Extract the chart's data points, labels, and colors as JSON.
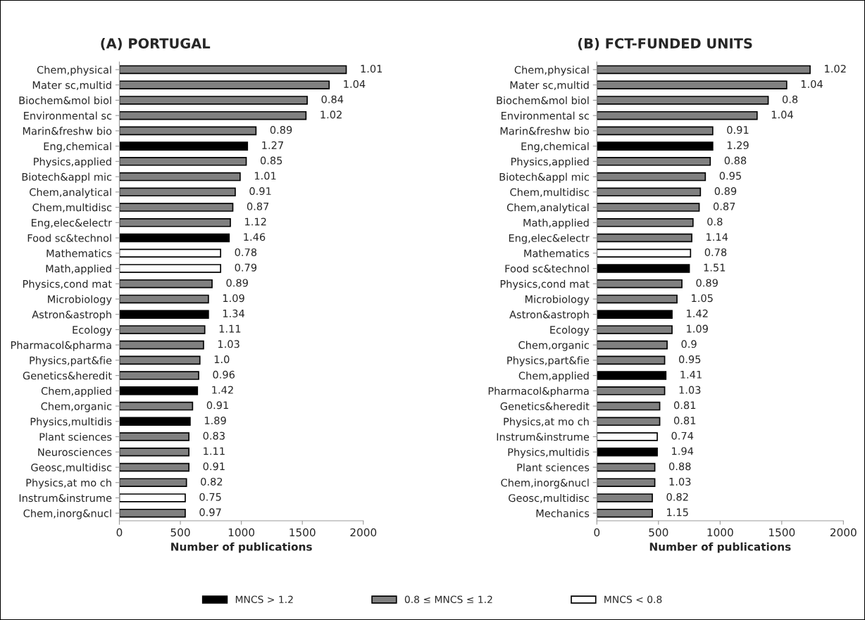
{
  "chart_data": [
    {
      "type": "bar",
      "orientation": "horizontal",
      "title": "(A) PORTUGAL",
      "xlabel": "Number of publications",
      "legend": "bottom",
      "grid": false,
      "categories": [
        "Chem,physical",
        "Mater sc,multid",
        "Biochem&mol biol",
        "Environmental sc",
        "Marin&freshw bio",
        "Eng,chemical",
        "Physics,applied",
        "Biotech&appl mic",
        "Chem,analytical",
        "Chem,multidisc",
        "Eng,elec&electr",
        "Food sc&technol",
        "Mathematics",
        "Math,applied",
        "Physics,cond mat",
        "Microbiology",
        "Astron&astroph",
        "Ecology",
        "Pharmacol&pharma",
        "Physics,part&fie",
        "Genetics&heredit",
        "Chem,applied",
        "Chem,organic",
        "Physics,multidis",
        "Plant sciences",
        "Neurosciences",
        "Geosc,multidisc",
        "Physics,at mo ch",
        "Instrum&instrume",
        "Chem,inorg&nucl"
      ],
      "xlim": [
        0,
        2000
      ],
      "xticks": [
        0,
        500,
        1000,
        1500,
        2000
      ],
      "value_labels": [
        "1.01",
        "1.04",
        "0.84",
        "1.02",
        "0.89",
        "1.27",
        "0.85",
        "1.01",
        "0.91",
        "0.87",
        "1.12",
        "1.46",
        "0.78",
        "0.79",
        "0.89",
        "1.09",
        "1.34",
        "1.11",
        "1.03",
        "1.0",
        "0.96",
        "1.42",
        "0.91",
        "1.89",
        "0.83",
        "1.11",
        "0.91",
        "0.82",
        "0.75",
        "0.97"
      ],
      "series": [
        {
          "name": "MNCS > 1.2",
          "color": "#000000",
          "values": [
            null,
            null,
            null,
            null,
            null,
            1050,
            null,
            null,
            null,
            null,
            null,
            900,
            null,
            null,
            null,
            null,
            730,
            null,
            null,
            null,
            null,
            640,
            null,
            580,
            null,
            null,
            null,
            null,
            null,
            null
          ]
        },
        {
          "name": "0.8 ≤ MNCS ≤ 1.2",
          "color": "#808080",
          "values": [
            1860,
            1720,
            1540,
            1530,
            1120,
            null,
            1040,
            990,
            950,
            930,
            910,
            null,
            null,
            null,
            760,
            730,
            null,
            700,
            690,
            660,
            650,
            null,
            600,
            null,
            570,
            570,
            570,
            550,
            null,
            540
          ]
        },
        {
          "name": "MNCS < 0.8",
          "color": "#ffffff",
          "values": [
            null,
            null,
            null,
            null,
            null,
            null,
            null,
            null,
            null,
            null,
            null,
            null,
            830,
            830,
            null,
            null,
            null,
            null,
            null,
            null,
            null,
            null,
            null,
            null,
            null,
            null,
            null,
            null,
            540,
            null
          ]
        }
      ]
    },
    {
      "type": "bar",
      "orientation": "horizontal",
      "title": "(B) FCT-FUNDED UNITS",
      "xlabel": "Number of publications",
      "grid": false,
      "categories": [
        "Chem,physical",
        "Mater sc,multid",
        "Biochem&mol biol",
        "Environmental sc",
        "Marin&freshw bio",
        "Eng,chemical",
        "Physics,applied",
        "Biotech&appl mic",
        "Chem,multidisc",
        "Chem,analytical",
        "Math,applied",
        "Eng,elec&electr",
        "Mathematics",
        "Food sc&technol",
        "Physics,cond mat",
        "Microbiology",
        "Astron&astroph",
        "Ecology",
        "Chem,organic",
        "Physics,part&fie",
        "Chem,applied",
        "Pharmacol&pharma",
        "Genetics&heredit",
        "Physics,at mo ch",
        "Instrum&instrume",
        "Physics,multidis",
        "Plant sciences",
        "Chem,inorg&nucl",
        "Geosc,multidisc",
        "Mechanics"
      ],
      "xlim": [
        0,
        2000
      ],
      "xticks": [
        0,
        500,
        1000,
        1500,
        2000
      ],
      "value_labels": [
        "1.02",
        "1.04",
        "0.8",
        "1.04",
        "0.91",
        "1.29",
        "0.88",
        "0.95",
        "0.89",
        "0.87",
        "0.8",
        "1.14",
        "0.78",
        "1.51",
        "0.89",
        "1.05",
        "1.42",
        "1.09",
        "0.9",
        "0.95",
        "1.41",
        "1.03",
        "0.81",
        "0.81",
        "0.74",
        "1.94",
        "0.88",
        "1.03",
        "0.82",
        "1.15"
      ],
      "series": [
        {
          "color": "#000000",
          "values": [
            null,
            null,
            null,
            null,
            null,
            940,
            null,
            null,
            null,
            null,
            null,
            null,
            null,
            750,
            null,
            null,
            610,
            null,
            null,
            null,
            560,
            null,
            null,
            null,
            null,
            490,
            null,
            null,
            null,
            null
          ]
        },
        {
          "color": "#808080",
          "values": [
            1730,
            1540,
            1390,
            1300,
            940,
            null,
            920,
            880,
            840,
            830,
            780,
            770,
            null,
            null,
            690,
            650,
            null,
            610,
            570,
            550,
            null,
            550,
            510,
            510,
            null,
            null,
            470,
            470,
            450,
            450
          ]
        },
        {
          "color": "#ffffff",
          "values": [
            null,
            null,
            null,
            null,
            null,
            null,
            null,
            null,
            null,
            null,
            null,
            null,
            760,
            null,
            null,
            null,
            null,
            null,
            null,
            null,
            null,
            null,
            null,
            null,
            490,
            null,
            null,
            null,
            null,
            null
          ]
        }
      ]
    }
  ]
}
